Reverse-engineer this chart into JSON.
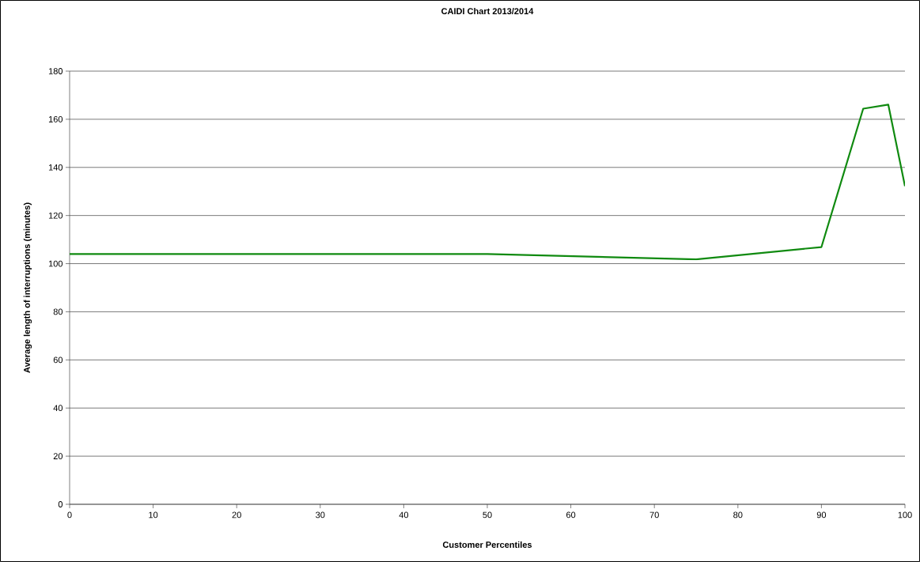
{
  "chart_data": {
    "type": "line",
    "title": "CAIDI Chart 2013/2014",
    "xlabel": "Customer Percentiles",
    "ylabel": "Average length of interruptions (minutes)",
    "x": [
      0,
      50,
      75,
      90,
      95,
      98,
      100
    ],
    "series": [
      {
        "color": "#108a10",
        "values": [
          104,
          104,
          101.8,
          106.9,
          164.4,
          166.1,
          132.2
        ]
      }
    ],
    "xlim": [
      0,
      100
    ],
    "xticks": [
      0,
      10,
      20,
      30,
      40,
      50,
      60,
      70,
      80,
      90,
      100
    ],
    "ylim": [
      0,
      180
    ],
    "yticks": [
      0,
      20,
      40,
      60,
      80,
      100,
      120,
      140,
      160,
      180
    ],
    "grid": "y",
    "marker": "none",
    "line_style": "solid"
  }
}
